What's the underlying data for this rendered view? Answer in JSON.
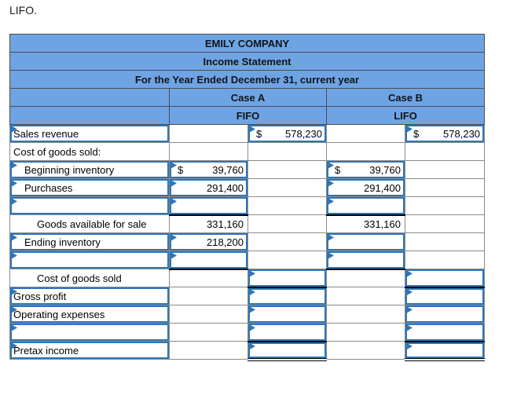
{
  "page": {
    "corner_label": "LIFO."
  },
  "colors": {
    "header_blue": "#6fa4e4",
    "input_border_blue": "#2e75b6",
    "grid_gray": "#8a8a8a",
    "sum_line_black": "#000000"
  },
  "icons": {
    "input_marker": "flag-triangle-icon"
  },
  "table": {
    "title": "EMILY COMPANY",
    "subtitle": "Income Statement",
    "period": "For the Year Ended December 31, current year",
    "case_a": {
      "label": "Case A",
      "method": "FIFO"
    },
    "case_b": {
      "label": "Case B",
      "method": "LIFO"
    },
    "rows": [
      {
        "label": "Sales revenue",
        "indent": 0,
        "label_input": true,
        "cells": {
          "a1": {},
          "a2": {
            "input": true,
            "dollar": "$",
            "value": "578,230"
          },
          "b1": {},
          "b2": {
            "input": true,
            "dollar": "$",
            "value": "578,230"
          }
        }
      },
      {
        "label": "Cost of goods sold:",
        "indent": 0,
        "label_input": false,
        "cells": {
          "a1": {},
          "a2": {},
          "b1": {},
          "b2": {}
        }
      },
      {
        "label": "Beginning inventory",
        "indent": 1,
        "label_input": true,
        "cells": {
          "a1": {
            "input": true,
            "dollar": "$",
            "value": "39,760"
          },
          "a2": {},
          "b1": {
            "input": true,
            "dollar": "$",
            "value": "39,760"
          },
          "b2": {}
        }
      },
      {
        "label": "Purchases",
        "indent": 1,
        "label_input": true,
        "cells": {
          "a1": {
            "input": true,
            "value": "291,400"
          },
          "a2": {},
          "b1": {
            "input": true,
            "value": "291,400"
          },
          "b2": {}
        }
      },
      {
        "label": "",
        "indent": 0,
        "label_input": true,
        "cells": {
          "a1": {
            "input": true,
            "line_bottom": "single"
          },
          "a2": {},
          "b1": {
            "input": true,
            "line_bottom": "single"
          },
          "b2": {}
        }
      },
      {
        "label": "Goods available for sale",
        "indent": 2,
        "label_input": false,
        "cells": {
          "a1": {
            "value": "331,160"
          },
          "a2": {},
          "b1": {
            "value": "331,160"
          },
          "b2": {}
        }
      },
      {
        "label": "Ending inventory",
        "indent": 1,
        "label_input": true,
        "cells": {
          "a1": {
            "input": true,
            "value": "218,200"
          },
          "a2": {},
          "b1": {
            "input": true
          },
          "b2": {}
        }
      },
      {
        "label": "",
        "indent": 0,
        "label_input": true,
        "cells": {
          "a1": {
            "input": true,
            "line_bottom": "single"
          },
          "a2": {},
          "b1": {
            "input": true,
            "line_bottom": "single"
          },
          "b2": {}
        }
      },
      {
        "label": "Cost of goods sold",
        "indent": 2,
        "label_input": false,
        "cells": {
          "a1": {},
          "a2": {
            "input": true,
            "line_bottom": "single"
          },
          "b1": {},
          "b2": {
            "input": true,
            "line_bottom": "single"
          }
        }
      },
      {
        "label": "Gross profit",
        "indent": 0,
        "label_input": true,
        "cells": {
          "a1": {},
          "a2": {
            "input": true
          },
          "b1": {},
          "b2": {
            "input": true
          }
        }
      },
      {
        "label": "Operating expenses",
        "indent": 0,
        "label_input": true,
        "cells": {
          "a1": {},
          "a2": {
            "input": true
          },
          "b1": {},
          "b2": {
            "input": true
          }
        }
      },
      {
        "label": "",
        "indent": 0,
        "label_input": true,
        "cells": {
          "a1": {},
          "a2": {
            "input": true
          },
          "b1": {},
          "b2": {
            "input": true
          }
        }
      },
      {
        "label": "Pretax income",
        "indent": 0,
        "label_input": true,
        "cells": {
          "a1": {},
          "a2": {
            "input": true,
            "line_top": "single",
            "line_bottom": "double"
          },
          "b1": {},
          "b2": {
            "input": true,
            "line_top": "single",
            "line_bottom": "double"
          }
        }
      }
    ]
  }
}
